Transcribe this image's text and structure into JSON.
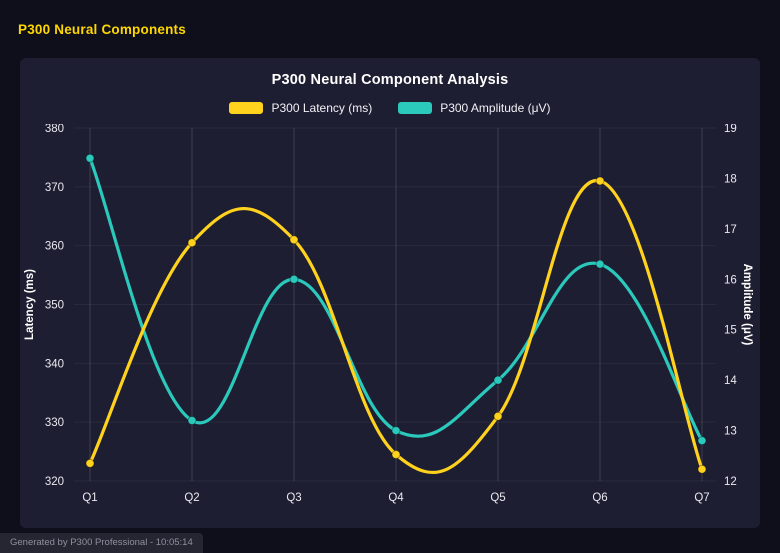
{
  "page_title": "P300 Neural Components",
  "footer": {
    "text": "Generated by P300 Professional - 10:05:14"
  },
  "chart_data": {
    "type": "line",
    "title": "P300 Neural Component Analysis",
    "curve": "smooth",
    "grid": true,
    "legend_position": "top",
    "categories": [
      "Q1",
      "Q2",
      "Q3",
      "Q4",
      "Q5",
      "Q6",
      "Q7"
    ],
    "series": [
      {
        "name": "P300 Latency (ms)",
        "axis": "left",
        "color": "#ffd21e",
        "values": [
          323,
          360.5,
          361,
          324.5,
          331,
          371,
          322
        ]
      },
      {
        "name": "P300 Amplitude (μV)",
        "axis": "right",
        "color": "#2bc8bc",
        "values": [
          18.4,
          13.2,
          16.0,
          13.0,
          14.0,
          16.3,
          12.8
        ]
      }
    ],
    "left_axis": {
      "label": "Latency (ms)",
      "min": 320,
      "max": 380,
      "ticks": [
        320,
        330,
        340,
        350,
        360,
        370,
        380
      ]
    },
    "right_axis": {
      "label": "Amplitude (μV)",
      "min": 12,
      "max": 19,
      "ticks": [
        12,
        13,
        14,
        15,
        16,
        17,
        18,
        19
      ]
    }
  }
}
